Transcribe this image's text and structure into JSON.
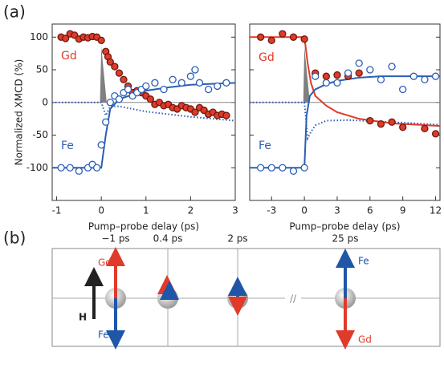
{
  "panel_labels": [
    "(a)",
    "(b)"
  ],
  "chart_data": [
    {
      "type": "scatter",
      "ylabel": "Normalized XMCD (%)",
      "xlabel": "Pump–probe delay (ps)",
      "xlim": [
        -1.1,
        3
      ],
      "xticks": [
        -1,
        0,
        1,
        2,
        3
      ],
      "ylim": [
        -150,
        120
      ],
      "yticks": [
        -100,
        -50,
        0,
        50,
        100
      ],
      "ytick_labels": true,
      "annotations": [
        "Gd",
        "Fe"
      ],
      "series": [
        {
          "color": "#808080",
          "style": "pulse",
          "x": [
            -0.03,
            0,
            0.12
          ],
          "values": [
            0,
            85,
            0
          ]
        },
        {
          "color": "#2b5fb4",
          "style": "dotted",
          "x": [
            -1.1,
            0,
            0.1,
            0.2,
            0.4,
            0.7,
            1,
            1.5,
            2,
            3
          ],
          "values": [
            0,
            0,
            -20,
            -6,
            -6,
            -10,
            -14,
            -18,
            -22,
            -28
          ]
        },
        {
          "color": "#2b5fb4",
          "style": "line",
          "x": [
            -1.1,
            0,
            0.1,
            0.2,
            0.4,
            0.7,
            1,
            1.5,
            2,
            3
          ],
          "values": [
            -100,
            -100,
            -50,
            -10,
            5,
            12,
            18,
            23,
            27,
            30
          ]
        },
        {
          "name": "Gd",
          "color": "#e03a2a",
          "style": "filled",
          "x": [
            -0.9,
            -0.8,
            -0.7,
            -0.6,
            -0.5,
            -0.4,
            -0.3,
            -0.2,
            -0.1,
            0,
            0.1,
            0.15,
            0.2,
            0.3,
            0.4,
            0.5,
            0.6,
            0.7,
            0.8,
            0.9,
            1.0,
            1.1,
            1.2,
            1.3,
            1.4,
            1.5,
            1.6,
            1.7,
            1.8,
            1.9,
            2.0,
            2.1,
            2.2,
            2.3,
            2.4,
            2.5,
            2.6,
            2.7,
            2.8
          ],
          "values": [
            100,
            98,
            105,
            103,
            97,
            100,
            99,
            101,
            100,
            95,
            78,
            70,
            62,
            55,
            45,
            35,
            25,
            15,
            18,
            15,
            10,
            5,
            -3,
            0,
            -5,
            -3,
            -8,
            -10,
            -5,
            -8,
            -10,
            -15,
            -8,
            -12,
            -18,
            -15,
            -20,
            -18,
            -20
          ]
        },
        {
          "name": "Fe",
          "color": "#2b5fb4",
          "style": "open",
          "x": [
            -0.9,
            -0.7,
            -0.5,
            -0.3,
            -0.2,
            -0.1,
            0,
            0.1,
            0.2,
            0.3,
            0.4,
            0.5,
            0.6,
            0.7,
            0.8,
            0.9,
            1.0,
            1.2,
            1.4,
            1.6,
            1.8,
            2.0,
            2.1,
            2.2,
            2.4,
            2.6,
            2.8
          ],
          "values": [
            -100,
            -100,
            -105,
            -100,
            -95,
            -100,
            -65,
            -30,
            0,
            10,
            5,
            15,
            20,
            10,
            15,
            20,
            25,
            30,
            20,
            35,
            30,
            40,
            50,
            30,
            20,
            25,
            30
          ]
        }
      ]
    },
    {
      "type": "scatter",
      "xlabel": "Pump–probe delay (ps)",
      "xlim": [
        -5,
        12.4
      ],
      "xticks": [
        -3,
        0,
        3,
        6,
        9,
        12
      ],
      "ylim": [
        -150,
        120
      ],
      "yticks": [
        -100,
        -50,
        0,
        50,
        100
      ],
      "ytick_labels": false,
      "annotations": [
        "Gd",
        "Fe"
      ],
      "series": [
        {
          "color": "#808080",
          "style": "pulse",
          "x": [
            -0.1,
            0,
            0.5
          ],
          "values": [
            0,
            85,
            0
          ]
        },
        {
          "color": "#2b5fb4",
          "style": "dotted",
          "x": [
            -5,
            0,
            0.3,
            0.6,
            1,
            2,
            4,
            8,
            12.4
          ],
          "values": [
            0,
            0,
            -55,
            -45,
            -35,
            -28,
            -27,
            -30,
            -34
          ]
        },
        {
          "color": "#e03a2a",
          "style": "line",
          "x": [
            -5,
            0,
            0.3,
            0.6,
            1,
            2,
            3,
            5,
            8,
            12.4
          ],
          "values": [
            100,
            100,
            60,
            30,
            10,
            -5,
            -15,
            -25,
            -32,
            -36
          ]
        },
        {
          "color": "#2b5fb4",
          "style": "line",
          "x": [
            -5,
            0,
            0.2,
            0.5,
            1,
            2,
            3,
            5,
            7,
            9,
            12.4
          ],
          "values": [
            -100,
            -100,
            -20,
            10,
            20,
            28,
            33,
            38,
            40,
            40,
            40
          ]
        },
        {
          "name": "Gd",
          "color": "#e03a2a",
          "style": "filled",
          "x": [
            -4,
            -3,
            -2,
            -1,
            0,
            1,
            2,
            3,
            4,
            5,
            6,
            7,
            8,
            9,
            11,
            12
          ],
          "values": [
            100,
            95,
            105,
            100,
            97,
            45,
            40,
            42,
            40,
            45,
            -28,
            -33,
            -30,
            -38,
            -40,
            -48
          ]
        },
        {
          "name": "Fe",
          "color": "#2b5fb4",
          "style": "open",
          "x": [
            -4,
            -3,
            -2,
            -1,
            0,
            1,
            2,
            3,
            4,
            5,
            6,
            7,
            8,
            9,
            10,
            11,
            12
          ],
          "values": [
            -100,
            -100,
            -100,
            -105,
            -100,
            40,
            30,
            30,
            45,
            60,
            50,
            35,
            55,
            20,
            40,
            35,
            40
          ]
        }
      ]
    }
  ],
  "diagram": {
    "times": [
      "−1 ps",
      "0.4 ps",
      "2 ps",
      "25 ps"
    ],
    "field": "H",
    "labels": [
      "Gd",
      "Fe",
      "Fe",
      "Gd"
    ]
  }
}
